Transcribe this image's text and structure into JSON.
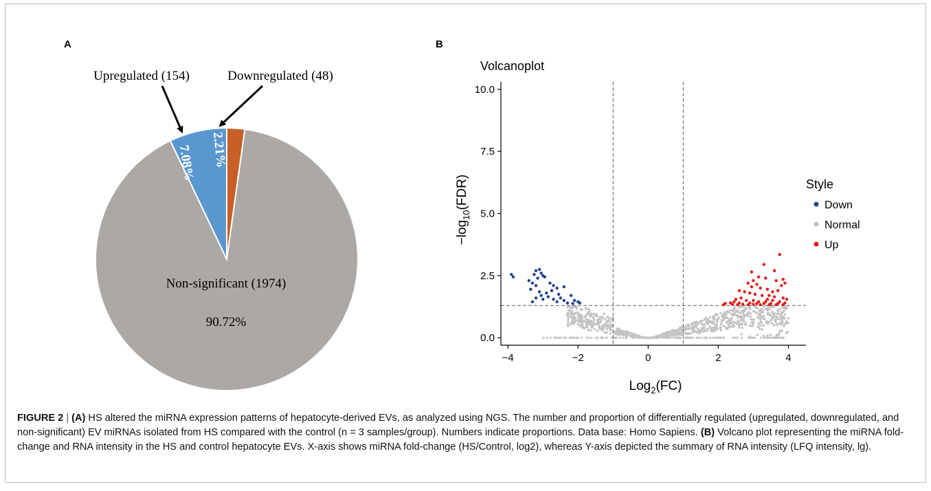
{
  "panel_a": {
    "letter": "A",
    "labels": {
      "upregulated": "Upregulated (154)",
      "downregulated": "Downregulated (48)",
      "nonsignificant": "Non-significant (1974)",
      "pct_nonsig": "90.72%",
      "pct_up": "7.08%",
      "pct_down": "2.21%"
    },
    "colors": {
      "nonsignificant": "#aca8a6",
      "upregulated": "#5b97cf",
      "downregulated": "#c85f27"
    }
  },
  "panel_b": {
    "letter": "B",
    "title": "Volcanoplot",
    "xlabel_main": "Log",
    "xlabel_sub": "2",
    "xlabel_tail": "(FC)",
    "ylabel_main": "−log",
    "ylabel_sub": "10",
    "ylabel_tail": "(FDR)",
    "legend_title": "Style",
    "legend_items": [
      {
        "label": "Down",
        "color": "#24408e"
      },
      {
        "label": "Normal",
        "color": "#bdbdbd"
      },
      {
        "label": "Up",
        "color": "#e41a1c"
      }
    ],
    "xticks": [
      "−4",
      "−2",
      "0",
      "2",
      "4"
    ],
    "yticks": [
      "0.0",
      "2.5",
      "5.0",
      "7.5",
      "10.0"
    ]
  },
  "chart_data": [
    {
      "type": "pie",
      "categories": [
        "Non-significant",
        "Upregulated",
        "Downregulated"
      ],
      "counts": [
        1974,
        154,
        48
      ],
      "values": [
        90.72,
        7.08,
        2.21
      ],
      "colors": [
        "#aca8a6",
        "#5b97cf",
        "#c85f27"
      ]
    },
    {
      "type": "scatter",
      "title": "Volcanoplot",
      "xlabel": "Log2(FC)",
      "ylabel": "−log10(FDR)",
      "xlim": [
        -4.2,
        4.5
      ],
      "ylim": [
        -0.3,
        10.3
      ],
      "xticks": [
        -4,
        -2,
        0,
        2,
        4
      ],
      "yticks": [
        0.0,
        2.5,
        5.0,
        7.5,
        10.0
      ],
      "thresholds": {
        "x": [
          -1,
          1
        ],
        "y": 1.3
      },
      "legend_placement": "right",
      "series": [
        {
          "name": "Down",
          "color": "#24408e",
          "points": [
            [
              -3.9,
              2.55
            ],
            [
              -3.85,
              2.45
            ],
            [
              -3.2,
              2.7
            ],
            [
              -3.1,
              2.75
            ],
            [
              -3.05,
              2.6
            ],
            [
              -3.25,
              2.55
            ],
            [
              -3.0,
              2.5
            ],
            [
              -2.95,
              2.45
            ],
            [
              -3.15,
              2.4
            ],
            [
              -3.4,
              2.3
            ],
            [
              -3.3,
              2.2
            ],
            [
              -3.2,
              2.1
            ],
            [
              -2.8,
              2.2
            ],
            [
              -2.7,
              2.1
            ],
            [
              -2.6,
              2.0
            ],
            [
              -2.4,
              2.05
            ],
            [
              -3.35,
              1.95
            ],
            [
              -3.1,
              1.85
            ],
            [
              -2.9,
              1.8
            ],
            [
              -2.75,
              1.9
            ],
            [
              -2.55,
              1.75
            ],
            [
              -3.05,
              1.7
            ],
            [
              -2.85,
              1.65
            ],
            [
              -3.2,
              1.6
            ],
            [
              -2.5,
              1.6
            ],
            [
              -2.2,
              1.7
            ],
            [
              -2.7,
              1.55
            ],
            [
              -3.0,
              1.55
            ],
            [
              -2.4,
              1.5
            ],
            [
              -2.6,
              1.45
            ],
            [
              -3.3,
              1.45
            ],
            [
              -2.1,
              1.5
            ],
            [
              -2.3,
              1.4
            ],
            [
              -2.0,
              1.45
            ],
            [
              -2.15,
              1.38
            ],
            [
              -1.95,
              1.4
            ]
          ]
        },
        {
          "name": "Up",
          "color": "#e41a1c",
          "points": [
            [
              3.75,
              3.35
            ],
            [
              3.3,
              2.95
            ],
            [
              3.6,
              2.7
            ],
            [
              2.95,
              2.65
            ],
            [
              3.15,
              2.45
            ],
            [
              3.35,
              2.4
            ],
            [
              3.85,
              2.35
            ],
            [
              3.65,
              2.3
            ],
            [
              3.9,
              2.2
            ],
            [
              3.8,
              2.1
            ],
            [
              3.0,
              2.3
            ],
            [
              3.1,
              2.15
            ],
            [
              2.85,
              2.2
            ],
            [
              2.95,
              2.05
            ],
            [
              3.2,
              2.0
            ],
            [
              3.4,
              1.95
            ],
            [
              3.7,
              1.9
            ],
            [
              3.55,
              1.85
            ],
            [
              2.6,
              1.9
            ],
            [
              2.75,
              1.85
            ],
            [
              2.9,
              1.8
            ],
            [
              3.05,
              1.75
            ],
            [
              3.25,
              1.7
            ],
            [
              3.45,
              1.7
            ],
            [
              3.6,
              1.65
            ],
            [
              3.85,
              1.6
            ],
            [
              2.65,
              1.6
            ],
            [
              2.5,
              1.55
            ],
            [
              2.8,
              1.5
            ],
            [
              3.0,
              1.5
            ],
            [
              3.15,
              1.45
            ],
            [
              3.35,
              1.45
            ],
            [
              3.55,
              1.5
            ],
            [
              3.75,
              1.45
            ],
            [
              2.35,
              1.4
            ],
            [
              2.45,
              1.45
            ],
            [
              2.6,
              1.4
            ],
            [
              2.9,
              1.4
            ],
            [
              3.1,
              1.38
            ],
            [
              3.3,
              1.38
            ],
            [
              3.5,
              1.38
            ],
            [
              3.7,
              1.38
            ],
            [
              3.9,
              1.4
            ],
            [
              2.2,
              1.38
            ],
            [
              2.4,
              1.35
            ],
            [
              2.7,
              1.35
            ],
            [
              3.0,
              1.35
            ],
            [
              3.2,
              1.33
            ],
            [
              3.45,
              1.33
            ],
            [
              3.65,
              1.33
            ],
            [
              3.85,
              1.33
            ],
            [
              2.15,
              1.33
            ],
            [
              2.55,
              1.33
            ],
            [
              2.85,
              1.33
            ],
            [
              3.4,
              1.55
            ],
            [
              3.95,
              1.55
            ]
          ]
        }
      ]
    }
  ],
  "caption": {
    "fig_label": "FIGURE 2",
    "sep": "|",
    "a_tag": "(A)",
    "a_text": " HS altered the miRNA expression patterns of hepatocyte-derived EVs, as analyzed using NGS. The number and proportion of differentially regulated (upregulated, downregulated, and non-significant) EV miRNAs isolated from HS compared with the control (n = 3 samples/group). Numbers indicate proportions. Data base: Homo Sapiens. ",
    "b_tag": "(B)",
    "b_text": " Volcano plot representing the miRNA fold-change and RNA intensity in the HS and control hepatocyte EVs. X-axis shows miRNA fold-change (HS/Control, log2), whereas Y-axis depicted the summary of RNA intensity (LFQ intensity, lg)."
  }
}
